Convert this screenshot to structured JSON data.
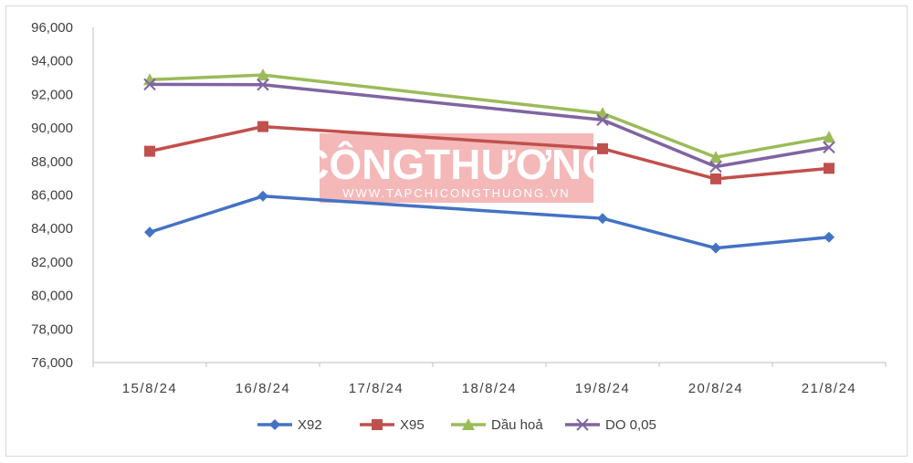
{
  "watermark": {
    "title": "CÔNGTHƯƠNG",
    "subtitle": "WWW.TAPCHICONGTHUONG.VN",
    "color": "#f4b8b8"
  },
  "chart_data": {
    "type": "line",
    "title": "",
    "xlabel": "",
    "ylabel": "",
    "categories": [
      "15/8/24",
      "16/8/24",
      "17/8/24",
      "18/8/24",
      "19/8/24",
      "20/8/24",
      "21/8/24"
    ],
    "ylim": [
      76000,
      96000
    ],
    "yticks": [
      "76,000",
      "78,000",
      "80,000",
      "82,000",
      "84,000",
      "86,000",
      "88,000",
      "90,000",
      "92,000",
      "94,000",
      "96,000"
    ],
    "grid": false,
    "legend_position": "bottom",
    "series": [
      {
        "name": "X92",
        "color": "#4472c4",
        "marker": "diamond",
        "values": [
          83780,
          85930,
          null,
          null,
          84600,
          82830,
          83480
        ]
      },
      {
        "name": "X95",
        "color": "#c0504d",
        "marker": "square",
        "values": [
          88610,
          90080,
          null,
          null,
          88760,
          86960,
          87590
        ]
      },
      {
        "name": "Dầu hoả",
        "color": "#9bbb59",
        "marker": "triangle",
        "values": [
          92880,
          93160,
          null,
          null,
          90870,
          88250,
          89450
        ]
      },
      {
        "name": "DO 0,05",
        "color": "#8064a2",
        "marker": "x",
        "values": [
          92600,
          92580,
          null,
          null,
          90480,
          87690,
          88840
        ]
      }
    ]
  }
}
